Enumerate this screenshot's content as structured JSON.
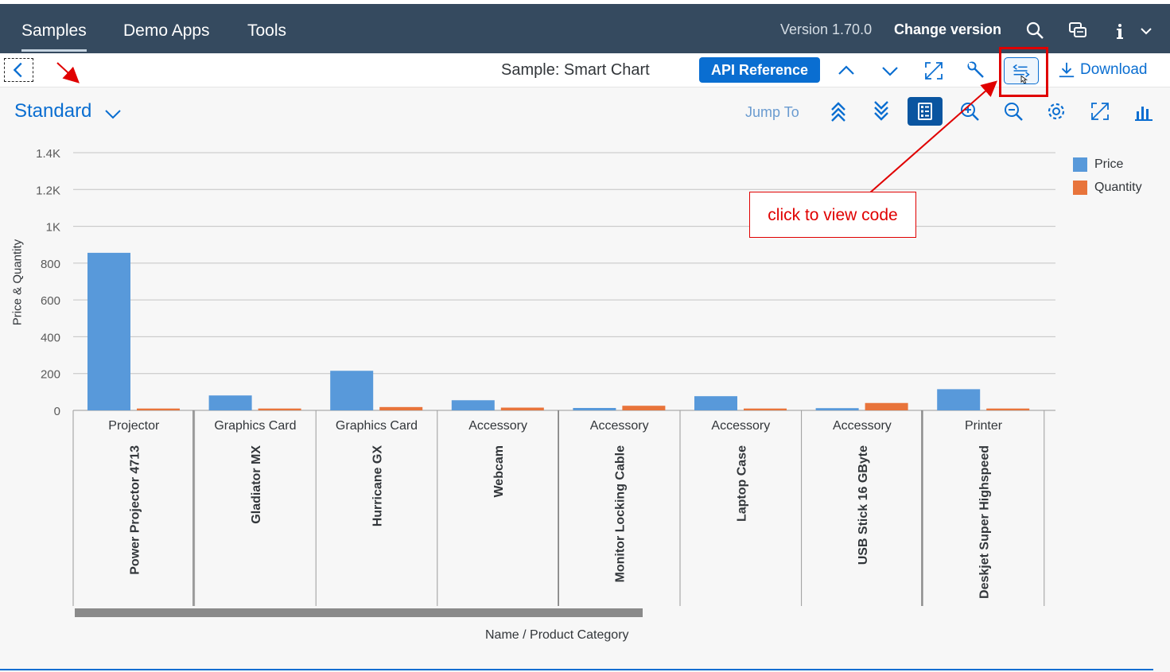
{
  "shell": {
    "tabs": [
      {
        "label": "Samples",
        "active": true
      },
      {
        "label": "Demo Apps",
        "active": false
      },
      {
        "label": "Tools",
        "active": false
      }
    ],
    "version": "Version 1.70.0",
    "change_version": "Change version",
    "icons": [
      "search-icon",
      "feedback-icon",
      "info-icon",
      "chevron-down-icon"
    ]
  },
  "subbar": {
    "title": "Sample: Smart Chart",
    "api_reference": "API Reference",
    "download": "Download",
    "icons": [
      "back-icon",
      "chevron-up-icon",
      "chevron-down-icon",
      "fullscreen-icon",
      "wrench-icon",
      "code-icon",
      "download-icon"
    ]
  },
  "chart_toolbar": {
    "variant": "Standard",
    "jump_to": "Jump To",
    "icons": [
      "drill-up-icon",
      "drill-down-icon",
      "legend-icon",
      "zoom-in-icon",
      "zoom-out-icon",
      "settings-icon",
      "fullscreen-icon",
      "chart-type-icon"
    ]
  },
  "annotation": {
    "callout": "click to view code"
  },
  "colors": {
    "shell_bg": "#354a5f",
    "accent": "#0a6ed1",
    "price": "#5899da",
    "quantity": "#e8743b",
    "annotation": "#e00000"
  },
  "chart_data": {
    "type": "bar",
    "title": "",
    "xlabel": "Name / Product Category",
    "ylabel": "Price & Quantity",
    "ylim": [
      0,
      1400
    ],
    "yticks": [
      "0",
      "200",
      "400",
      "600",
      "800",
      "1K",
      "1.2K",
      "1.4K"
    ],
    "ytick_values": [
      0,
      200,
      400,
      600,
      800,
      1000,
      1200,
      1400
    ],
    "categories": [
      {
        "name": "Power Projector 4713",
        "category": "Projector"
      },
      {
        "name": "Gladiator MX",
        "category": "Graphics Card"
      },
      {
        "name": "Hurricane GX",
        "category": "Graphics Card"
      },
      {
        "name": "Webcam",
        "category": "Accessory"
      },
      {
        "name": "Monitor Locking Cable",
        "category": "Accessory"
      },
      {
        "name": "Laptop Case",
        "category": "Accessory"
      },
      {
        "name": "USB Stick 16 GByte",
        "category": "Accessory"
      },
      {
        "name": "Deskjet Super Highspeed",
        "category": "Printer"
      }
    ],
    "series": [
      {
        "name": "Price",
        "values": [
          856,
          81,
          215,
          55,
          13,
          77,
          12,
          115
        ]
      },
      {
        "name": "Quantity",
        "values": [
          10,
          10,
          18,
          15,
          25,
          10,
          40,
          10
        ]
      }
    ],
    "legend_position": "right",
    "grid": true
  }
}
